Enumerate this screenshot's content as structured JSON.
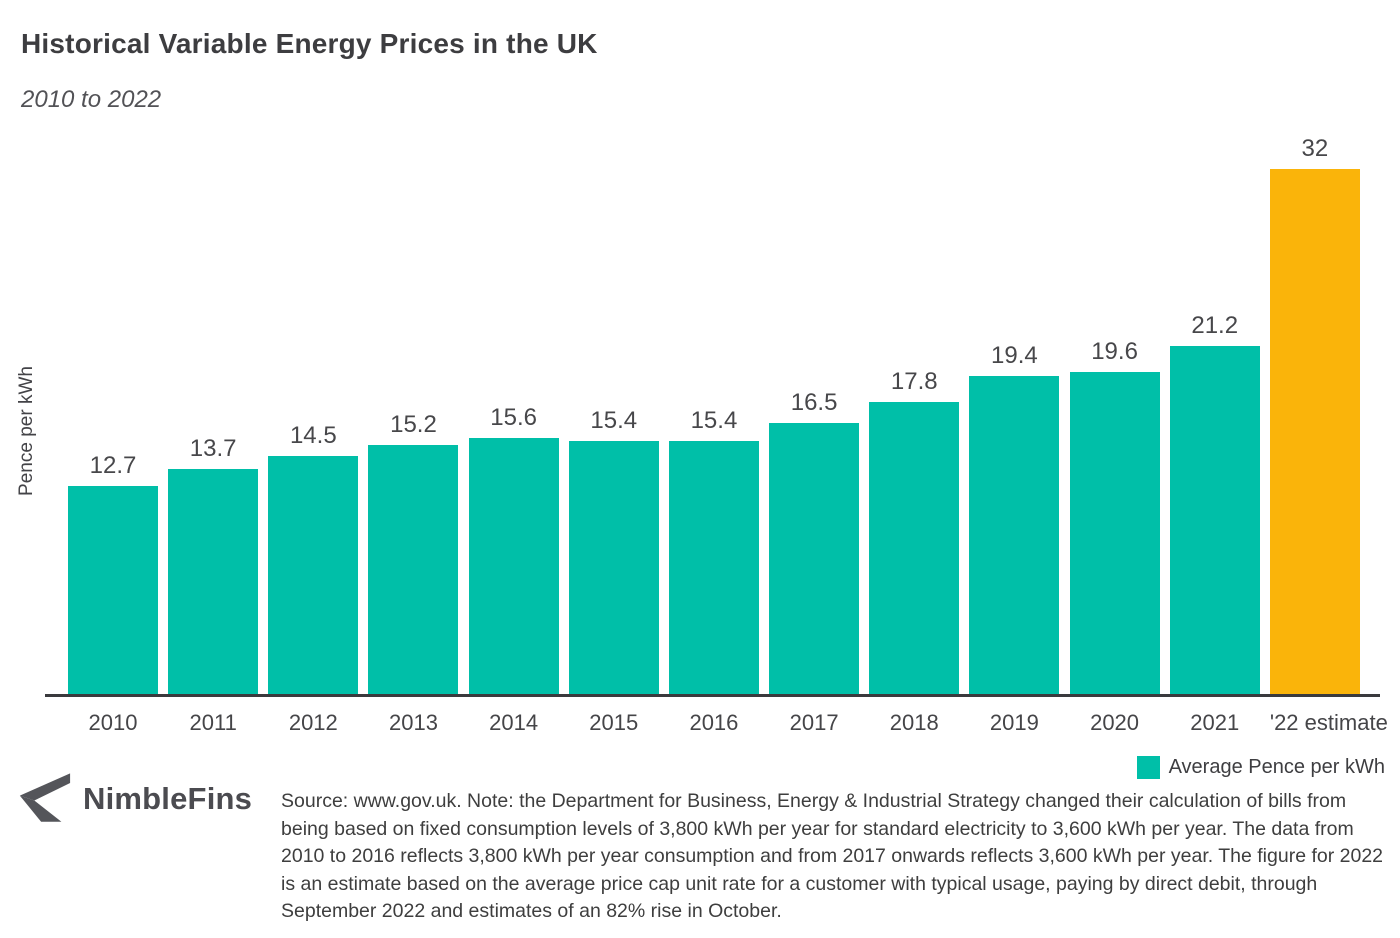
{
  "header": {
    "title": "Historical Variable Energy Prices in the UK",
    "subtitle": "2010 to 2022"
  },
  "chart_data": {
    "type": "bar",
    "title": "Historical Variable Energy Prices in the UK",
    "subtitle": "2010 to 2022",
    "categories": [
      "2010",
      "2011",
      "2012",
      "2013",
      "2014",
      "2015",
      "2016",
      "2017",
      "2018",
      "2019",
      "2020",
      "2021",
      "'22 estimate"
    ],
    "values": [
      12.7,
      13.7,
      14.5,
      15.2,
      15.6,
      15.4,
      15.4,
      16.5,
      17.8,
      19.4,
      19.6,
      21.2,
      32
    ],
    "series_name": "Average Pence per kWh",
    "xlabel": "",
    "ylabel": "Pence per kWh",
    "ylim": [
      0,
      32
    ],
    "grid": false,
    "data_labels": true,
    "highlight_index": 12,
    "colors": {
      "bar_default": "#00bfa8",
      "bar_highlight": "#fab40a"
    },
    "legend": {
      "position": "bottom-right",
      "label": "Average Pence per kWh",
      "swatch_color": "#00bfa8"
    }
  },
  "footer": {
    "brand": "NimbleFins",
    "source_text": "Source: www.gov.uk. Note: the Department for Business, Energy & Industrial Strategy changed their calculation of bills from being based on fixed consumption levels of 3,800 kWh per year for standard electricity to 3,600 kWh per year. The data from 2010 to 2016 reflects 3,800 kWh per year consumption and from 2017 onwards reflects 3,600 kWh per year. The figure for 2022 is an estimate based on the average price cap unit rate for a customer with typical usage, paying by direct debit, through September 2022 and estimates of an 82% rise in October."
  }
}
